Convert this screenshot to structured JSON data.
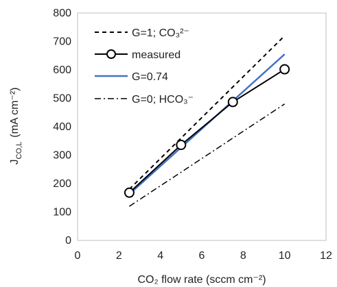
{
  "chart_data": {
    "type": "line",
    "xlabel": "CO₂ flow rate (sccm cm⁻²)",
    "ylabel": "J",
    "ylabel_subscript": "CO,L",
    "ylabel_units": "(mA cm⁻²)",
    "xlim": [
      0,
      12
    ],
    "ylim": [
      0,
      800
    ],
    "x_ticks": [
      0,
      2,
      4,
      6,
      8,
      10,
      12
    ],
    "y_ticks": [
      0,
      100,
      200,
      300,
      400,
      500,
      600,
      700,
      800
    ],
    "grid": false,
    "legend_position": "top-left",
    "series": [
      {
        "name": "G=1; CO₃²⁻",
        "x": [
          2.5,
          10
        ],
        "y": [
          180,
          720
        ],
        "color": "#000000",
        "style": "dashed",
        "markers": false
      },
      {
        "name": "measured",
        "x": [
          2.5,
          5,
          7.5,
          10
        ],
        "y": [
          168,
          336,
          487,
          602
        ],
        "color": "#000000",
        "style": "solid",
        "markers": true
      },
      {
        "name": "G=0.74",
        "x": [
          2.5,
          10
        ],
        "y": [
          163,
          655
        ],
        "color": "#4472C4",
        "style": "solid",
        "markers": false
      },
      {
        "name": "G=0; HCO₃⁻",
        "x": [
          2.5,
          10
        ],
        "y": [
          120,
          480
        ],
        "color": "#000000",
        "style": "dashdot",
        "markers": false
      }
    ]
  }
}
